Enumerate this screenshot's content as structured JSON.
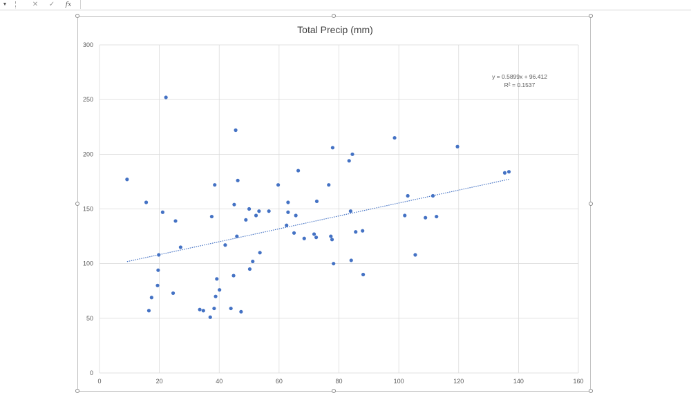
{
  "formula_bar": {
    "cancel_icon": "close-icon",
    "enter_icon": "check-icon",
    "function_label": "fx",
    "value": ""
  },
  "colors": {
    "marker": "#4472C4",
    "trendline": "#4472C4",
    "gridline": "#d9d9d9",
    "axis_text": "#595959",
    "title_text": "#404040"
  },
  "chart_data": {
    "type": "scatter",
    "title": "Total Precip (mm)",
    "xlabel": "",
    "ylabel": "",
    "xlim": [
      0,
      160
    ],
    "ylim": [
      0,
      300
    ],
    "x_ticks": [
      "0",
      "20",
      "40",
      "60",
      "80",
      "100",
      "120",
      "140",
      "160"
    ],
    "y_ticks": [
      "0",
      "50",
      "100",
      "150",
      "200",
      "250",
      "300"
    ],
    "grid": true,
    "legend": "none",
    "series": [
      {
        "points": [
          [
            9.2,
            177
          ],
          [
            15.6,
            156
          ],
          [
            16.5,
            57
          ],
          [
            17.4,
            69
          ],
          [
            19.4,
            80
          ],
          [
            19.6,
            94
          ],
          [
            19.8,
            108
          ],
          [
            21.1,
            147
          ],
          [
            22.2,
            252
          ],
          [
            24.6,
            73
          ],
          [
            25.4,
            139
          ],
          [
            27.1,
            115
          ],
          [
            33.5,
            58
          ],
          [
            34.7,
            57
          ],
          [
            37.0,
            51
          ],
          [
            37.5,
            143
          ],
          [
            38.3,
            59
          ],
          [
            38.5,
            172
          ],
          [
            38.8,
            70
          ],
          [
            39.2,
            86
          ],
          [
            40.1,
            76
          ],
          [
            42.0,
            117
          ],
          [
            43.9,
            59
          ],
          [
            44.8,
            89
          ],
          [
            45.0,
            154
          ],
          [
            45.5,
            222
          ],
          [
            45.9,
            125
          ],
          [
            46.2,
            176
          ],
          [
            47.3,
            56
          ],
          [
            48.9,
            140
          ],
          [
            50.2,
            95
          ],
          [
            50.0,
            150
          ],
          [
            51.2,
            102
          ],
          [
            52.3,
            144
          ],
          [
            53.3,
            148
          ],
          [
            53.6,
            110
          ],
          [
            56.6,
            148
          ],
          [
            59.7,
            172
          ],
          [
            62.5,
            135
          ],
          [
            63.0,
            156
          ],
          [
            63.0,
            147
          ],
          [
            65.0,
            128
          ],
          [
            65.6,
            144
          ],
          [
            66.4,
            185
          ],
          [
            68.4,
            123
          ],
          [
            71.7,
            127
          ],
          [
            72.4,
            124
          ],
          [
            72.6,
            157
          ],
          [
            76.6,
            172
          ],
          [
            77.3,
            125
          ],
          [
            77.7,
            122
          ],
          [
            77.9,
            206
          ],
          [
            78.2,
            100
          ],
          [
            83.4,
            194
          ],
          [
            83.9,
            148
          ],
          [
            84.1,
            103
          ],
          [
            84.5,
            200
          ],
          [
            85.6,
            129
          ],
          [
            87.9,
            130
          ],
          [
            88.1,
            90
          ],
          [
            98.6,
            215
          ],
          [
            102.0,
            144
          ],
          [
            103.0,
            162
          ],
          [
            105.5,
            108
          ],
          [
            108.9,
            142
          ],
          [
            111.4,
            162
          ],
          [
            112.6,
            143
          ],
          [
            119.6,
            207
          ],
          [
            135.4,
            183
          ],
          [
            136.8,
            184
          ]
        ]
      }
    ],
    "trendline": {
      "type": "linear",
      "slope": 0.5899,
      "intercept": 96.412,
      "x_range": [
        9.2,
        136.8
      ],
      "equation_label": "y = 0.5899x + 96.412",
      "r2_label": "R² = 0.1537"
    }
  }
}
